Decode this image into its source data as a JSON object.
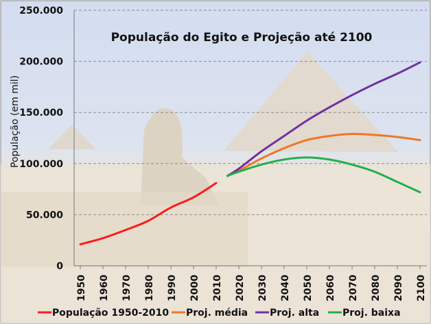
{
  "chart_data": {
    "type": "line",
    "title": "População do Egito e Projeção até 2100",
    "xlabel": "",
    "ylabel": "População (em mil)",
    "ylim": [
      0,
      250000
    ],
    "yticks": [
      "0",
      "50.000",
      "100.000",
      "150.000",
      "200.000",
      "250.000"
    ],
    "ytick_values": [
      0,
      50000,
      100000,
      150000,
      200000,
      250000
    ],
    "xticks": [
      "1950",
      "1960",
      "1970",
      "1980",
      "1990",
      "2000",
      "2010",
      "2020",
      "2030",
      "2040",
      "2050",
      "2060",
      "2070",
      "2080",
      "2090",
      "2100"
    ],
    "xlim": [
      1950,
      2100
    ],
    "grid": "horizontal dashed",
    "legend_position": "bottom",
    "series": [
      {
        "name": "População 1950-2010",
        "color": "#ff1a1a",
        "x": [
          1950,
          1960,
          1970,
          1980,
          1990,
          2000,
          2010
        ],
        "values": [
          21000,
          27000,
          35000,
          44000,
          57000,
          67000,
          81000
        ]
      },
      {
        "name": "Proj. média",
        "color": "#ee7722",
        "x": [
          2015,
          2020,
          2030,
          2040,
          2050,
          2060,
          2070,
          2080,
          2090,
          2100
        ],
        "values": [
          88000,
          93000,
          105000,
          115000,
          123000,
          127000,
          129000,
          128000,
          126000,
          123000
        ]
      },
      {
        "name": "Proj. alta",
        "color": "#7030a0",
        "x": [
          2015,
          2020,
          2030,
          2040,
          2050,
          2060,
          2070,
          2080,
          2090,
          2100
        ],
        "values": [
          88000,
          95000,
          112000,
          127000,
          142000,
          155000,
          167000,
          178000,
          188000,
          199000
        ]
      },
      {
        "name": "Proj. baixa",
        "color": "#1fb04a",
        "x": [
          2015,
          2020,
          2030,
          2040,
          2050,
          2060,
          2070,
          2080,
          2090,
          2100
        ],
        "values": [
          88000,
          92000,
          99000,
          104000,
          106000,
          104000,
          99000,
          92000,
          82000,
          72000
        ]
      }
    ]
  }
}
